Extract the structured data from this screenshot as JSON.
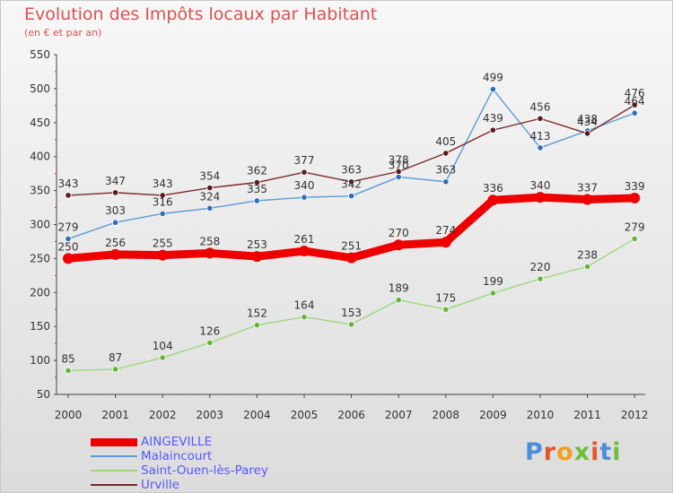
{
  "header": {
    "title": "Evolution des Impôts locaux par Habitant",
    "subtitle": "(en € et par an)"
  },
  "logo": {
    "text": "Proxiti",
    "colors": [
      "#4a90d9",
      "#e8542a",
      "#f0a020",
      "#6bbf3a",
      "#e8542a",
      "#4a90d9",
      "#6bbf3a"
    ]
  },
  "chart_data": {
    "type": "line",
    "x": [
      "2000",
      "2001",
      "2002",
      "2003",
      "2004",
      "2005",
      "2006",
      "2007",
      "2008",
      "2009",
      "2010",
      "2011",
      "2012"
    ],
    "ylim": [
      50,
      550
    ],
    "yticks": [
      50,
      100,
      150,
      200,
      250,
      300,
      350,
      400,
      450,
      500,
      550
    ],
    "grid": false,
    "legend": "bottom-left",
    "series": [
      {
        "name": "AINGEVILLE",
        "color": "#ee0000",
        "values": [
          250,
          256,
          255,
          258,
          253,
          261,
          251,
          270,
          274,
          336,
          340,
          337,
          339
        ]
      },
      {
        "name": "Malaincourt",
        "color": "#5b9bd5",
        "values": [
          279,
          303,
          316,
          324,
          335,
          340,
          342,
          370,
          363,
          499,
          413,
          438,
          464
        ]
      },
      {
        "name": "Saint-Ouen-lès-Parey",
        "color": "#9bd97a",
        "values": [
          85,
          87,
          104,
          126,
          152,
          164,
          153,
          189,
          175,
          199,
          220,
          238,
          279
        ]
      },
      {
        "name": "Urville",
        "color": "#7b2a2a",
        "values": [
          343,
          347,
          343,
          354,
          362,
          377,
          363,
          378,
          405,
          439,
          456,
          434,
          476
        ]
      }
    ]
  }
}
